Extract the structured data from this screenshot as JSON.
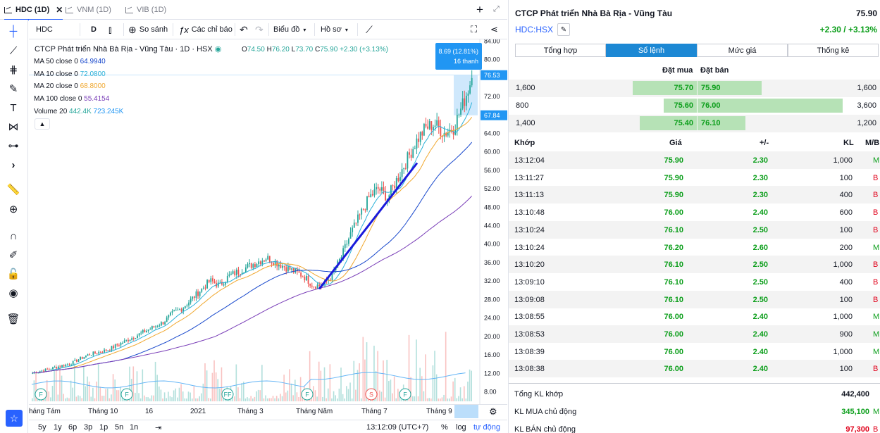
{
  "tabs": [
    {
      "label": "HDC (1D)",
      "active": true
    },
    {
      "label": "VNM (1D)",
      "active": false
    },
    {
      "label": "VIB (1D)",
      "active": false
    }
  ],
  "toolbar": {
    "symbol": "HDC",
    "interval": "D",
    "compare": "So sánh",
    "indicators": "Các chỉ báo",
    "chart_type": "Biểu đồ",
    "profile": "Hồ sơ"
  },
  "legend": {
    "title": "CTCP Phát triển Nhà Bà Rịa - Vũng Tàu · 1D · HSX",
    "ohlc": {
      "o_label": "O",
      "o": "74.50",
      "h_label": "H",
      "h": "76.20",
      "l_label": "L",
      "l": "73.70",
      "c_label": "C",
      "c": "75.90",
      "change": "+2.30 (+3.13%)"
    },
    "ma50": {
      "label": "MA 50 close 0",
      "value": "64.9940",
      "color": "#1848cc"
    },
    "ma10": {
      "label": "MA 10 close 0",
      "value": "72.0800",
      "color": "#2ab0d8"
    },
    "ma20": {
      "label": "MA 20 close 0",
      "value": "68.8000",
      "color": "#f0a830"
    },
    "ma100": {
      "label": "MA 100 close 0",
      "value": "55.4154",
      "color": "#7a3fb8"
    },
    "volume": {
      "label": "Volume 20",
      "v1": "442.4K",
      "v2": "723.245K"
    }
  },
  "measure": {
    "line1": "8.69 (12.81%)",
    "line2": "16 thanh"
  },
  "price_axis": {
    "ticks": [
      "84.00",
      "80.00",
      "76.53",
      "72.00",
      "67.84",
      "64.00",
      "60.00",
      "56.00",
      "52.00",
      "48.00",
      "44.00",
      "40.00",
      "36.00",
      "32.00",
      "28.00",
      "24.00",
      "20.00",
      "16.00",
      "12.00",
      "8.00"
    ],
    "highlight_top": "76.53",
    "highlight_bottom": "67.84"
  },
  "time_axis": [
    "háng Tám",
    "Tháng 10",
    "16",
    "2021",
    "Tháng 3",
    "Tháng Năm",
    "Tháng 7",
    "Tháng 9"
  ],
  "markers": [
    "F",
    "F",
    "FF",
    "F",
    "S",
    "F"
  ],
  "ranges": [
    "5y",
    "1y",
    "6p",
    "3p",
    "1p",
    "5n",
    "1n"
  ],
  "bottom": {
    "time": "13:12:09 (UTC+7)",
    "percent": "%",
    "log": "log",
    "auto": "tự động"
  },
  "chart_data": {
    "type": "candlestick",
    "title": "CTCP Phát triển Nhà Bà Rịa - Vũng Tàu · 1D · HSX",
    "ylim": [
      8,
      84
    ],
    "close_series_approx": [
      12,
      12.5,
      13,
      13.5,
      14,
      15,
      16,
      16.5,
      17,
      18,
      19,
      20,
      21,
      22,
      23,
      25,
      26,
      28,
      30,
      32,
      31,
      33,
      34,
      35,
      36,
      37,
      36,
      35,
      34,
      33,
      31,
      31,
      33,
      37,
      42,
      46,
      50,
      52,
      50,
      54,
      58,
      62,
      65,
      66,
      64,
      65,
      70,
      75.9
    ],
    "series": [
      {
        "name": "MA 50 close 0",
        "last": 64.994
      },
      {
        "name": "MA 10 close 0",
        "last": 72.08
      },
      {
        "name": "MA 20 close 0",
        "last": 68.8
      },
      {
        "name": "MA 100 close 0",
        "last": 55.4154
      }
    ]
  },
  "stock": {
    "name": "CTCP Phát triển Nhà Bà Rịa - Vũng Tàu",
    "price": "75.90",
    "symbol": "HDC:HSX",
    "change": "+2.30 / +3.13%"
  },
  "panel_tabs": [
    {
      "label": "Tổng hợp",
      "active": false
    },
    {
      "label": "Sổ lệnh",
      "active": true
    },
    {
      "label": "Mức giá",
      "active": false
    },
    {
      "label": "Thống kê",
      "active": false
    }
  ],
  "orderbook": {
    "buy_header": "Đặt mua",
    "sell_header": "Đặt bán",
    "rows": [
      {
        "buy_vol": "1,600",
        "buy_price": "75.70",
        "sell_price": "75.90",
        "sell_vol": "1,600",
        "buy_pct": 0.27,
        "sell_pct": 0.27
      },
      {
        "buy_vol": "800",
        "buy_price": "75.60",
        "sell_price": "76.00",
        "sell_vol": "3,600",
        "buy_pct": 0.14,
        "sell_pct": 0.61
      },
      {
        "buy_vol": "1,400",
        "buy_price": "75.40",
        "sell_price": "76.10",
        "sell_vol": "1,200",
        "buy_pct": 0.24,
        "sell_pct": 0.2
      }
    ]
  },
  "trades": {
    "headers": {
      "time": "Khớp",
      "price": "Giá",
      "change": "+/-",
      "volume": "KL",
      "side": "M/B"
    },
    "rows": [
      {
        "time": "13:12:04",
        "price": "75.90",
        "change": "2.30",
        "volume": "1,000",
        "side": "M"
      },
      {
        "time": "13:11:27",
        "price": "75.90",
        "change": "2.30",
        "volume": "100",
        "side": "B"
      },
      {
        "time": "13:11:13",
        "price": "75.90",
        "change": "2.30",
        "volume": "400",
        "side": "B"
      },
      {
        "time": "13:10:48",
        "price": "76.00",
        "change": "2.40",
        "volume": "600",
        "side": "B"
      },
      {
        "time": "13:10:24",
        "price": "76.10",
        "change": "2.50",
        "volume": "100",
        "side": "B"
      },
      {
        "time": "13:10:24",
        "price": "76.20",
        "change": "2.60",
        "volume": "200",
        "side": "M"
      },
      {
        "time": "13:10:20",
        "price": "76.10",
        "change": "2.50",
        "volume": "1,000",
        "side": "B"
      },
      {
        "time": "13:09:10",
        "price": "76.10",
        "change": "2.50",
        "volume": "400",
        "side": "B"
      },
      {
        "time": "13:09:08",
        "price": "76.10",
        "change": "2.50",
        "volume": "100",
        "side": "B"
      },
      {
        "time": "13:08:55",
        "price": "76.00",
        "change": "2.40",
        "volume": "1,000",
        "side": "M"
      },
      {
        "time": "13:08:53",
        "price": "76.00",
        "change": "2.40",
        "volume": "900",
        "side": "M"
      },
      {
        "time": "13:08:39",
        "price": "76.00",
        "change": "2.40",
        "volume": "1,000",
        "side": "M"
      },
      {
        "time": "13:08:38",
        "price": "76.00",
        "change": "2.40",
        "volume": "100",
        "side": "B"
      }
    ]
  },
  "summary": [
    {
      "label": "Tổng KL khớp",
      "value": "442,400",
      "side": ""
    },
    {
      "label": "KL MUA chủ động",
      "value": "345,100",
      "side": "M"
    },
    {
      "label": "KL BÁN chủ động",
      "value": "97,300",
      "side": "B"
    }
  ],
  "colors": {
    "up": "#26a69a",
    "down": "#ef5350",
    "accent": "#2962ff",
    "buy_green": "#0b9e1a",
    "sell_red": "#e0001a",
    "trend": "#1a1adb"
  }
}
